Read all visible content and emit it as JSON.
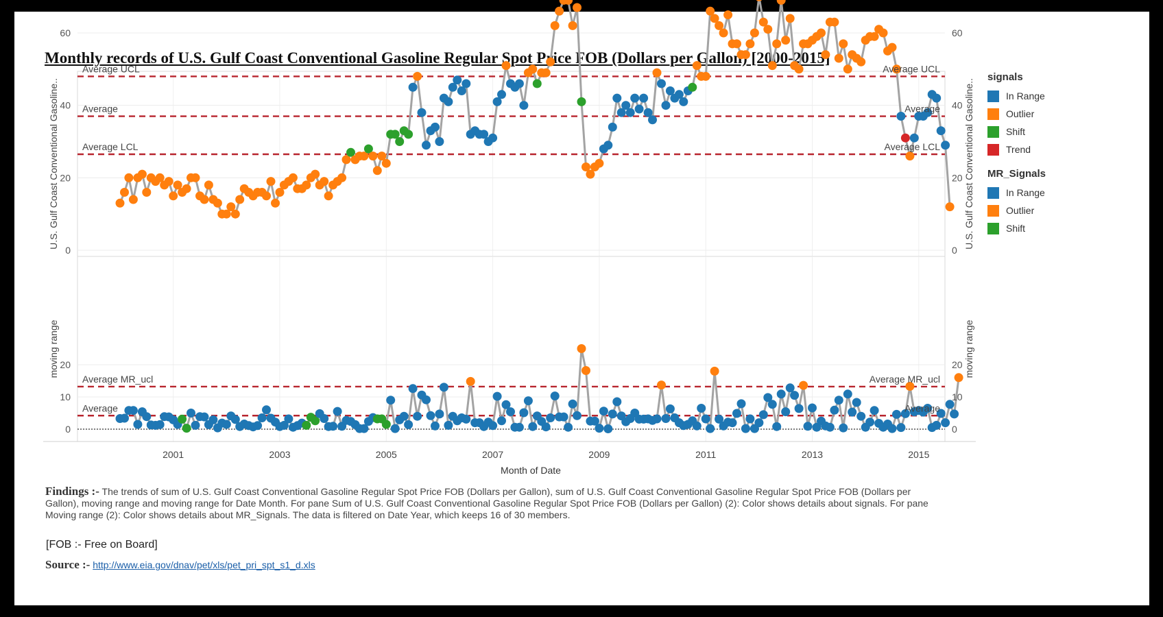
{
  "title": "Monthly records of U.S. Gulf Coast Conventional Gasoline Regular Spot Price FOB (Dollars per Gallon) [2000-2015]",
  "legend": {
    "signals_title": "signals",
    "signals": [
      {
        "label": "In Range",
        "color": "#1f77b4"
      },
      {
        "label": "Outlier",
        "color": "#ff7f0e"
      },
      {
        "label": "Shift",
        "color": "#2ca02c"
      },
      {
        "label": "Trend",
        "color": "#d62728"
      }
    ],
    "mr_title": "MR_Signals",
    "mr_signals": [
      {
        "label": "In Range",
        "color": "#1f77b4"
      },
      {
        "label": "Outlier",
        "color": "#ff7f0e"
      },
      {
        "label": "Shift",
        "color": "#2ca02c"
      }
    ]
  },
  "findings": {
    "label": "Findings :-",
    "text": "The trends of sum of U.S. Gulf Coast Conventional Gasoline Regular Spot Price FOB (Dollars per Gallon), sum of U.S. Gulf Coast Conventional Gasoline Regular Spot Price FOB (Dollars per Gallon), moving range and moving range for Date Month.  For pane Sum of U.S. Gulf Coast Conventional Gasoline Regular Spot Price FOB (Dollars per Gallon) (2):  Color shows details about signals.  For pane Moving range (2):  Color shows details about MR_Signals. The data is filtered on Date Year, which keeps 16 of 30 members.",
    "fob_note": "[FOB :- Free on Board]"
  },
  "source": {
    "label": "Source :-",
    "link_text": "http://www.eia.gov/dnav/pet/xls/pet_pri_spt_s1_d.xls"
  },
  "chart_data": [
    {
      "type": "line",
      "title": "U.S. Gulf Coast Conventional Gasoline (monthly price, ×100)",
      "ylabel": "U.S. Gulf Coast Conventional Gasoline..",
      "xlabel": "Month of Date",
      "ylim": [
        0,
        75
      ],
      "yticks": [
        0,
        20,
        40,
        60
      ],
      "x_ticks": [
        "2001",
        "2003",
        "2005",
        "2007",
        "2009",
        "2011",
        "2013",
        "2015"
      ],
      "x_start": "2000-01",
      "reference_lines": [
        {
          "label": "Average UCL",
          "value": 48
        },
        {
          "label": "Average",
          "value": 37
        },
        {
          "label": "Average LCL",
          "value": 26.5
        }
      ],
      "segments": [
        {
          "signal": "Outlier",
          "values": [
            13,
            16,
            20,
            14,
            20,
            21,
            16,
            20,
            19,
            20,
            18,
            19,
            15,
            18,
            16,
            17,
            20,
            20,
            15,
            14,
            18,
            14,
            13,
            10,
            10,
            12,
            10,
            14,
            17,
            16,
            15,
            16,
            16,
            15,
            19,
            13,
            16,
            18,
            19,
            20,
            17,
            17,
            18,
            20,
            21,
            18,
            19,
            15,
            18,
            19,
            20,
            25
          ]
        },
        {
          "signal": "Shift",
          "values": [
            27
          ]
        },
        {
          "signal": "Outlier",
          "values": [
            25,
            26,
            26
          ]
        },
        {
          "signal": "Shift",
          "values": [
            28
          ]
        },
        {
          "signal": "Outlier",
          "values": [
            26,
            22,
            26,
            24
          ]
        },
        {
          "signal": "Shift",
          "values": [
            32,
            32,
            30,
            33,
            32
          ]
        },
        {
          "signal": "In Range",
          "values": [
            45
          ]
        },
        {
          "signal": "Outlier",
          "values": [
            48
          ]
        },
        {
          "signal": "In Range",
          "values": [
            38,
            29,
            33,
            34,
            30,
            42,
            41,
            45,
            47,
            44,
            46,
            32,
            33,
            32,
            32,
            30,
            31,
            41,
            43
          ]
        },
        {
          "signal": "Outlier",
          "values": [
            51
          ]
        },
        {
          "signal": "In Range",
          "values": [
            46,
            45,
            46,
            40
          ]
        },
        {
          "signal": "Outlier",
          "values": [
            49,
            50
          ]
        },
        {
          "signal": "Shift",
          "values": [
            46
          ]
        },
        {
          "signal": "Outlier",
          "values": [
            49,
            49,
            52,
            62,
            66,
            69,
            69,
            62,
            67
          ]
        },
        {
          "signal": "Shift",
          "values": [
            41
          ]
        },
        {
          "signal": "Outlier",
          "values": [
            23,
            21,
            23,
            24
          ]
        },
        {
          "signal": "In Range",
          "values": [
            28,
            29,
            34,
            42,
            38,
            40,
            38,
            42,
            39,
            42,
            38,
            36
          ]
        },
        {
          "signal": "Outlier",
          "values": [
            49
          ]
        },
        {
          "signal": "In Range",
          "values": [
            46,
            40,
            44,
            42,
            43,
            41,
            44
          ]
        },
        {
          "signal": "Shift",
          "values": [
            45
          ]
        },
        {
          "signal": "Outlier",
          "values": [
            51,
            48,
            48,
            66,
            64,
            62,
            60,
            65,
            57,
            57,
            54,
            54,
            57,
            60,
            70,
            63,
            61,
            51,
            57,
            69,
            58,
            64,
            51,
            50,
            57,
            57,
            58,
            59,
            60,
            54,
            63,
            63,
            53,
            57,
            50,
            54,
            53,
            52,
            58,
            59,
            59,
            61,
            60,
            55,
            56,
            50
          ]
        },
        {
          "signal": "In Range",
          "values": [
            37
          ]
        },
        {
          "signal": "Trend",
          "values": [
            31
          ]
        },
        {
          "signal": "Outlier",
          "values": [
            26
          ]
        },
        {
          "signal": "In Range",
          "values": [
            31,
            37,
            37,
            38,
            43,
            42,
            33,
            29
          ]
        },
        {
          "signal": "Outlier",
          "values": [
            12
          ]
        }
      ]
    },
    {
      "type": "line",
      "title": "Moving range",
      "ylabel": "moving range",
      "ylim": [
        -1,
        26
      ],
      "yticks": [
        0,
        10,
        20
      ],
      "reference_lines": [
        {
          "label": "Average MR_ucl",
          "value": 13.2
        },
        {
          "label": "Average",
          "value": 4.2
        }
      ],
      "zero_line": true,
      "segments": [
        {
          "signal": "In Range",
          "values": [
            3.3,
            3.4,
            5.8,
            5.8,
            1.5,
            5.4,
            3.9,
            1.3,
            1.2,
            1.4,
            3.9,
            3.8,
            2.9,
            1.5
          ]
        },
        {
          "signal": "Shift",
          "values": [
            3.1,
            0.3
          ]
        },
        {
          "signal": "In Range",
          "values": [
            5.0,
            1.2,
            3.9,
            3.8,
            1.4,
            2.9,
            0.4,
            1.9,
            1.5,
            4.1,
            3.0,
            0.8,
            1.6,
            1.1,
            0.7,
            1.1,
            3.5,
            6.0,
            3.4,
            2.2,
            0.8,
            1.2,
            3.2,
            0.6,
            1.1,
            1.9
          ]
        },
        {
          "signal": "Shift",
          "values": [
            1.2,
            3.7,
            2.6
          ]
        },
        {
          "signal": "In Range",
          "values": [
            4.8,
            3.3,
            0.8,
            0.9,
            5.5,
            0.9,
            2.7,
            2.4,
            1.4,
            0.2,
            0.2,
            2.4,
            3.6
          ]
        },
        {
          "signal": "Shift",
          "values": [
            3.2,
            3.2,
            1.5
          ]
        },
        {
          "signal": "In Range",
          "values": [
            9.0,
            0.2,
            2.9,
            4.0,
            1.4,
            12.6,
            4.0,
            10.6,
            9.1,
            4.2,
            1.0,
            4.7,
            13.0,
            1.2,
            4.0,
            2.6,
            3.5,
            3.1
          ]
        },
        {
          "signal": "Outlier",
          "values": [
            14.8
          ]
        },
        {
          "signal": "In Range",
          "values": [
            2.0,
            2.0,
            0.8,
            2.2,
            1.1,
            10.2,
            2.6,
            7.6,
            5.4,
            0.6,
            0.6,
            5.1,
            8.8,
            0.8,
            4.1,
            2.4,
            0.7,
            3.5,
            10.3,
            3.8,
            3.8,
            0.6,
            7.8,
            4.2
          ]
        },
        {
          "signal": "Outlier",
          "values": [
            25.0,
            18.2
          ]
        },
        {
          "signal": "In Range",
          "values": [
            2.5,
            2.5,
            0.3,
            5.6,
            0.1,
            4.7,
            8.5,
            4.1,
            2.3,
            3.3,
            5.0,
            3.1,
            3.1,
            3.2,
            2.7,
            3.2
          ]
        },
        {
          "signal": "Outlier",
          "values": [
            13.7
          ]
        },
        {
          "signal": "In Range",
          "values": [
            3.3,
            6.3,
            3.5,
            2.0,
            1.1,
            1.5,
            2.6,
            1.0,
            6.5,
            3.2,
            0.2
          ]
        },
        {
          "signal": "Outlier",
          "values": [
            18.0
          ]
        },
        {
          "signal": "In Range",
          "values": [
            3.1,
            1.0,
            2.2,
            2.0,
            4.9,
            7.9,
            0.2,
            3.2,
            0.2,
            2.0,
            4.5,
            9.8,
            7.7,
            0.8,
            10.9,
            5.4,
            12.8,
            10.5,
            6.4
          ]
        },
        {
          "signal": "Outlier",
          "values": [
            13.6
          ]
        },
        {
          "signal": "In Range",
          "values": [
            0.9,
            6.6,
            0.6,
            2.5,
            1.0,
            0.6,
            5.9,
            9.0,
            0.4,
            10.9,
            5.3,
            8.3,
            4.0,
            0.6,
            2.2,
            5.8,
            1.8,
            0.6,
            1.6,
            0.2,
            4.6,
            0.5,
            4.8
          ]
        },
        {
          "signal": "Outlier",
          "values": [
            13.3
          ]
        },
        {
          "signal": "In Range",
          "values": [
            5.4,
            5.8,
            5.3,
            6.5,
            0.5,
            1.2,
            4.9,
            2.0,
            7.7,
            4.7
          ]
        },
        {
          "signal": "Outlier",
          "values": [
            16.0
          ]
        }
      ]
    }
  ]
}
